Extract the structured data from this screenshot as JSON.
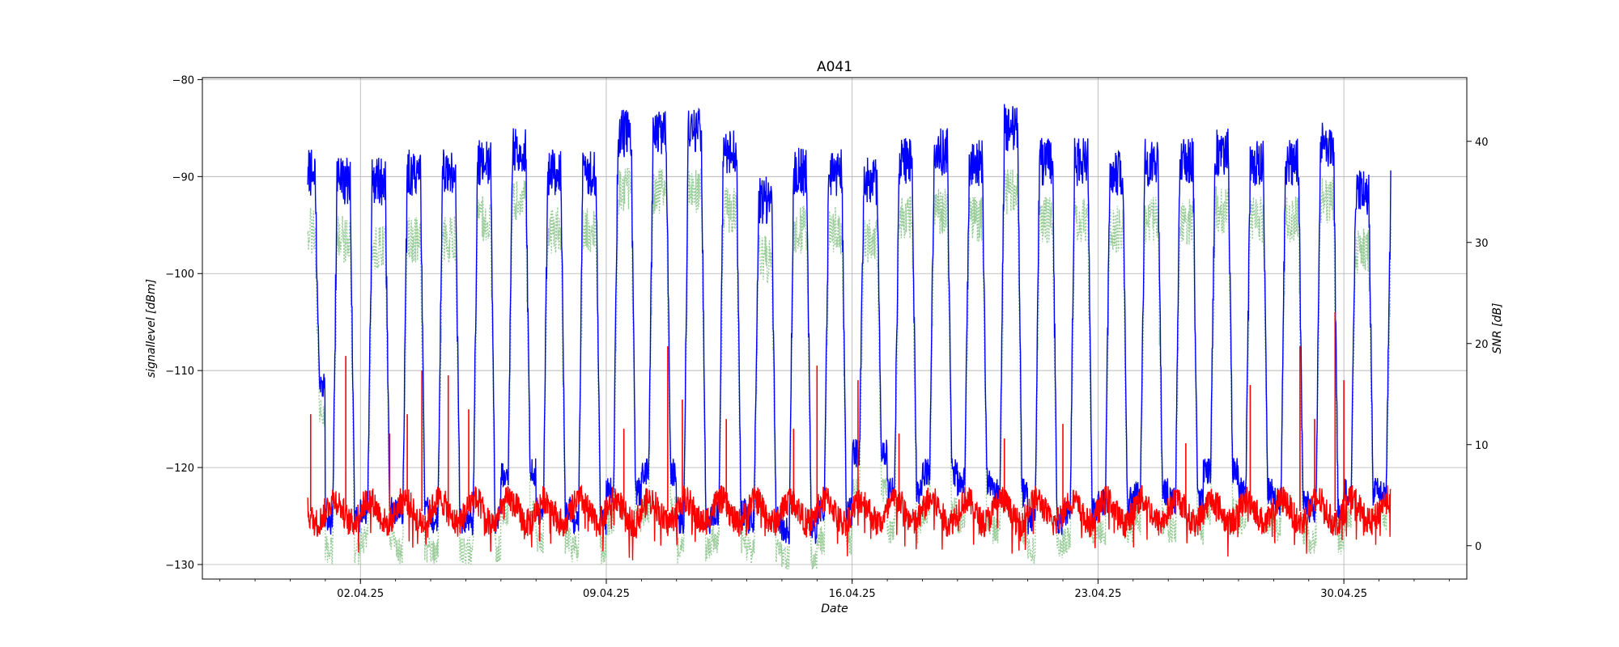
{
  "chart_data": {
    "type": "line",
    "title": "A041",
    "xlabel": "Date",
    "ylabel_left": "signallevel [dBm]",
    "ylabel_right": "SNR [dB]",
    "x_range": [
      "2025-03-28T12:00",
      "2025-05-03T12:00"
    ],
    "x_ticks": [
      {
        "date": "2025-04-02",
        "label": "02.04.25"
      },
      {
        "date": "2025-04-09",
        "label": "09.04.25"
      },
      {
        "date": "2025-04-16",
        "label": "16.04.25"
      },
      {
        "date": "2025-04-23",
        "label": "23.04.25"
      },
      {
        "date": "2025-04-30",
        "label": "30.04.25"
      }
    ],
    "y_left_range": [
      -131.5,
      -79.8
    ],
    "y_left_ticks": [
      -80,
      -90,
      -100,
      -110,
      -120,
      -130
    ],
    "y_right_range": [
      -3.3,
      46.3
    ],
    "y_right_ticks": [
      0,
      10,
      20,
      30,
      40
    ],
    "grid": true,
    "data_range": [
      "2025-03-31T12:00",
      "2025-05-01T08:00"
    ],
    "series": [
      {
        "color": "#0000ff",
        "axis": "left",
        "style": "solid",
        "sampling": "daily peaks (max) and troughs (min), dBm",
        "daily_max": [
          -87,
          -88,
          -88,
          -87,
          -87,
          -86,
          -84.5,
          -87,
          -87,
          -83,
          -83,
          -83,
          -85,
          -90,
          -87,
          -87,
          -88,
          -86,
          -85,
          -86,
          -82.5,
          -86,
          -86,
          -87,
          -86,
          -86,
          -85,
          -86,
          -86,
          -84,
          -89
        ],
        "daily_min": [
          -110,
          -124,
          -123,
          -123,
          -124,
          -124,
          -119,
          -123,
          -124,
          -121,
          -119,
          -124,
          -123,
          -124,
          -125,
          -123,
          -117,
          -121,
          -119,
          -120,
          -121,
          -124,
          -123,
          -122,
          -121,
          -122,
          -119,
          -121,
          -122,
          -123,
          -121
        ]
      },
      {
        "color": "#99cc99",
        "axis": "left",
        "style": "dotted",
        "sampling": "daily peaks (max) and troughs (min), dBm",
        "daily_max": [
          -93,
          -94,
          -95,
          -94,
          -94,
          -92,
          -90,
          -93,
          -93,
          -89,
          -89,
          -89,
          -91,
          -96,
          -93,
          -93,
          -94,
          -92,
          -91,
          -92,
          -89,
          -92,
          -92,
          -93,
          -92,
          -92,
          -91,
          -92,
          -92,
          -90,
          -95
        ],
        "daily_min": [
          -113,
          -127,
          -126,
          -127,
          -127,
          -127,
          -123,
          -126,
          -127,
          -124,
          -123,
          -127,
          -126,
          -127,
          -128,
          -126,
          -121,
          -125,
          -123,
          -124,
          -125,
          -127,
          -126,
          -125,
          -124,
          -125,
          -123,
          -124,
          -125,
          -126,
          -124
        ]
      },
      {
        "color": "#ff0000",
        "axis": "left",
        "style": "solid",
        "sampling": "daily baseline and spikes, dBm",
        "baseline": -124.5,
        "spikes": [
          {
            "date": "2025-03-31T14:00",
            "value": -114.5
          },
          {
            "date": "2025-04-01T14:00",
            "value": -108.5
          },
          {
            "date": "2025-04-02T20:00",
            "value": -116.5
          },
          {
            "date": "2025-04-03T08:00",
            "value": -114.5
          },
          {
            "date": "2025-04-03T18:00",
            "value": -110
          },
          {
            "date": "2025-04-04T12:00",
            "value": -110.5
          },
          {
            "date": "2025-04-05T02:00",
            "value": -114
          },
          {
            "date": "2025-04-09T12:00",
            "value": -116
          },
          {
            "date": "2025-04-10T18:00",
            "value": -107.5
          },
          {
            "date": "2025-04-11T04:00",
            "value": -113
          },
          {
            "date": "2025-04-12T10:00",
            "value": -115
          },
          {
            "date": "2025-04-14T08:00",
            "value": -116
          },
          {
            "date": "2025-04-15T00:00",
            "value": -109.5
          },
          {
            "date": "2025-04-16T04:00",
            "value": -111
          },
          {
            "date": "2025-04-17T08:00",
            "value": -116.5
          },
          {
            "date": "2025-04-20T08:00",
            "value": -117
          },
          {
            "date": "2025-04-22T00:00",
            "value": -115.5
          },
          {
            "date": "2025-04-25T12:00",
            "value": -117.5
          },
          {
            "date": "2025-04-27T08:00",
            "value": -111.5
          },
          {
            "date": "2025-04-28T18:00",
            "value": -107.5
          },
          {
            "date": "2025-04-29T04:00",
            "value": -115
          },
          {
            "date": "2025-04-29T18:00",
            "value": -104
          },
          {
            "date": "2025-04-30T00:00",
            "value": -111
          }
        ]
      }
    ]
  }
}
